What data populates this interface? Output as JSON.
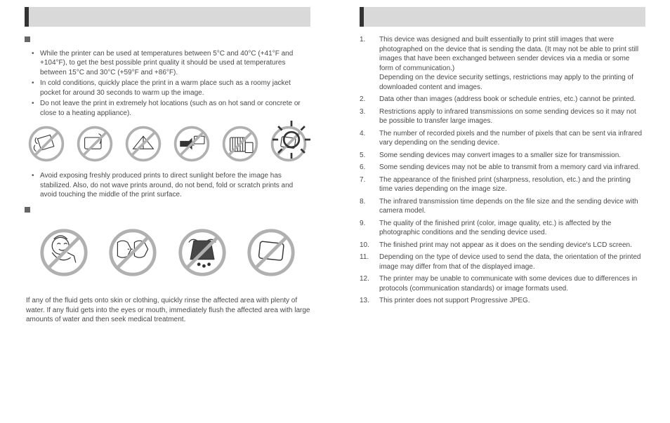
{
  "left": {
    "section1": {
      "bullets": [
        "While the printer can be used at temperatures between 5°C and 40°C (+41°F and +104°F), to get the best possible print quality it should be used at temperatures between 15°C and 30°C (+59°F and +86°F).",
        "In cold conditions, quickly place the print in a warm place such as a roomy jacket pocket for around 30 seconds to warm up the image.",
        "Do not leave the print in extremely hot locations (such as on hot sand or concrete or close to a heating appliance)."
      ],
      "after_icons": [
        "Avoid exposing freshly produced prints to direct sunlight before the image has stabilized. Also, do not wave prints around, do not bend, fold or scratch prints and avoid touching the middle of the print surface."
      ]
    },
    "footer_text": "If any of the fluid gets onto skin or clothing, quickly rinse the affected area with plenty of water. If any fluid gets into the eyes or mouth, immediately flush the affected area with large amounts of water and then seek medical treatment."
  },
  "right": {
    "items": [
      "This device was designed and built essentially to print still images that were photographed on the device that is sending the data. (It may not be able to print still images that have been exchanged between sender devices via a media or some form of communication.)\nDepending on the device security settings, restrictions may apply to the printing of downloaded content and images.",
      "Data other than images (address book or schedule entries, etc.) cannot be printed.",
      "Restrictions apply to infrared transmissions on some sending devices so it may not be possible to transfer large images.",
      "The number of recorded pixels and the number of pixels that can be sent via infrared vary depending on the sending device.",
      "Some sending devices may convert images to a smaller size for transmission.",
      "Some sending devices may not be able to transmit from a memory card via infrared.",
      "The appearance of the finished print (sharpness, resolution, etc.) and the printing time varies depending on the image size.",
      "The infrared transmission time depends on the file size and the sending device with camera model.",
      "The quality of the finished print (color, image quality, etc.) is affected by the photographic conditions and the sending device used.",
      "The finished print may not appear as it does on the sending device's LCD screen.",
      "Depending on the type of device used to send the data, the orientation of the printed image may differ from that of the displayed image.",
      "The printer may be unable to communicate with some devices due to differences in protocols (communication standards) or image formats used.",
      "This printer does not support Progressive JPEG."
    ]
  },
  "style": {
    "prohibit_stroke": "#b0b0b0",
    "icon_stroke": "#333333"
  }
}
